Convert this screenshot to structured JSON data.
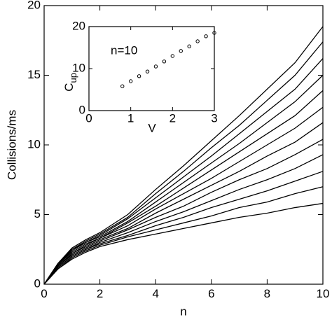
{
  "chart_data": [
    {
      "type": "line",
      "xlabel": "n",
      "ylabel": "Collisions/ms",
      "x": [
        0,
        0.5,
        1,
        1.5,
        2,
        3,
        4,
        5,
        6,
        7,
        8,
        9,
        10
      ],
      "xlim": [
        0,
        10
      ],
      "xticks": [
        0,
        2,
        4,
        6,
        8,
        10
      ],
      "ylim": [
        0,
        20
      ],
      "yticks": [
        0,
        5,
        10,
        15,
        20
      ],
      "series": [
        {
          "color": "#000000",
          "values": [
            0,
            1.1,
            1.8,
            2.3,
            2.7,
            3.2,
            3.6,
            4.0,
            4.4,
            4.8,
            5.1,
            5.5,
            5.8
          ]
        },
        {
          "color": "#000000",
          "values": [
            0,
            1.1,
            1.9,
            2.4,
            2.8,
            3.4,
            3.9,
            4.4,
            4.9,
            5.5,
            5.9,
            6.5,
            7.0
          ]
        },
        {
          "color": "#000000",
          "values": [
            0,
            1.2,
            2.0,
            2.5,
            2.9,
            3.5,
            4.2,
            4.8,
            5.5,
            6.1,
            6.7,
            7.4,
            8.1
          ]
        },
        {
          "color": "#000000",
          "values": [
            0,
            1.2,
            2.0,
            2.5,
            3.0,
            3.7,
            4.5,
            5.2,
            6.0,
            6.8,
            7.5,
            8.3,
            9.3
          ]
        },
        {
          "color": "#000000",
          "values": [
            0,
            1.3,
            2.1,
            2.6,
            3.1,
            3.9,
            4.8,
            5.6,
            6.6,
            7.5,
            8.3,
            9.3,
            10.4
          ]
        },
        {
          "color": "#000000",
          "values": [
            0,
            1.3,
            2.2,
            2.7,
            3.2,
            4.0,
            5.1,
            6.1,
            7.1,
            8.1,
            9.2,
            10.2,
            11.6
          ]
        },
        {
          "color": "#000000",
          "values": [
            0,
            1.3,
            2.2,
            2.8,
            3.3,
            4.2,
            5.4,
            6.5,
            7.6,
            8.8,
            10.0,
            11.2,
            12.7
          ]
        },
        {
          "color": "#000000",
          "values": [
            0,
            1.4,
            2.3,
            2.9,
            3.3,
            4.4,
            5.6,
            6.9,
            8.2,
            9.5,
            10.8,
            12.1,
            13.9
          ]
        },
        {
          "color": "#000000",
          "values": [
            0,
            1.4,
            2.4,
            3.0,
            3.4,
            4.5,
            5.9,
            7.3,
            8.7,
            10.1,
            11.6,
            13.1,
            15.0
          ]
        },
        {
          "color": "#000000",
          "values": [
            0,
            1.4,
            2.5,
            3.0,
            3.5,
            4.7,
            6.2,
            7.7,
            9.2,
            10.8,
            12.4,
            14.0,
            16.2
          ]
        },
        {
          "color": "#000000",
          "values": [
            0,
            1.5,
            2.5,
            3.1,
            3.6,
            4.8,
            6.5,
            8.1,
            9.8,
            11.4,
            13.2,
            15.0,
            17.4
          ]
        },
        {
          "color": "#000000",
          "values": [
            0,
            1.5,
            2.6,
            3.2,
            3.7,
            5.0,
            6.8,
            8.5,
            10.3,
            12.1,
            14.0,
            15.9,
            18.5
          ]
        }
      ]
    },
    {
      "type": "scatter",
      "xlabel": "V",
      "ylabel": "C",
      "ylabel_subscript": "up",
      "annotation": "n=10",
      "x": [
        0.8,
        1.0,
        1.2,
        1.4,
        1.6,
        1.8,
        2.0,
        2.2,
        2.4,
        2.6,
        2.8,
        3.0
      ],
      "values": [
        5.8,
        7.0,
        8.2,
        9.3,
        10.5,
        11.7,
        13.0,
        14.2,
        15.3,
        16.5,
        17.7,
        18.5
      ],
      "color": "#000000",
      "xlim": [
        0,
        3
      ],
      "xticks": [
        0,
        1,
        2,
        3
      ],
      "ylim": [
        0,
        20
      ],
      "yticks": [
        0,
        10,
        20
      ]
    }
  ]
}
